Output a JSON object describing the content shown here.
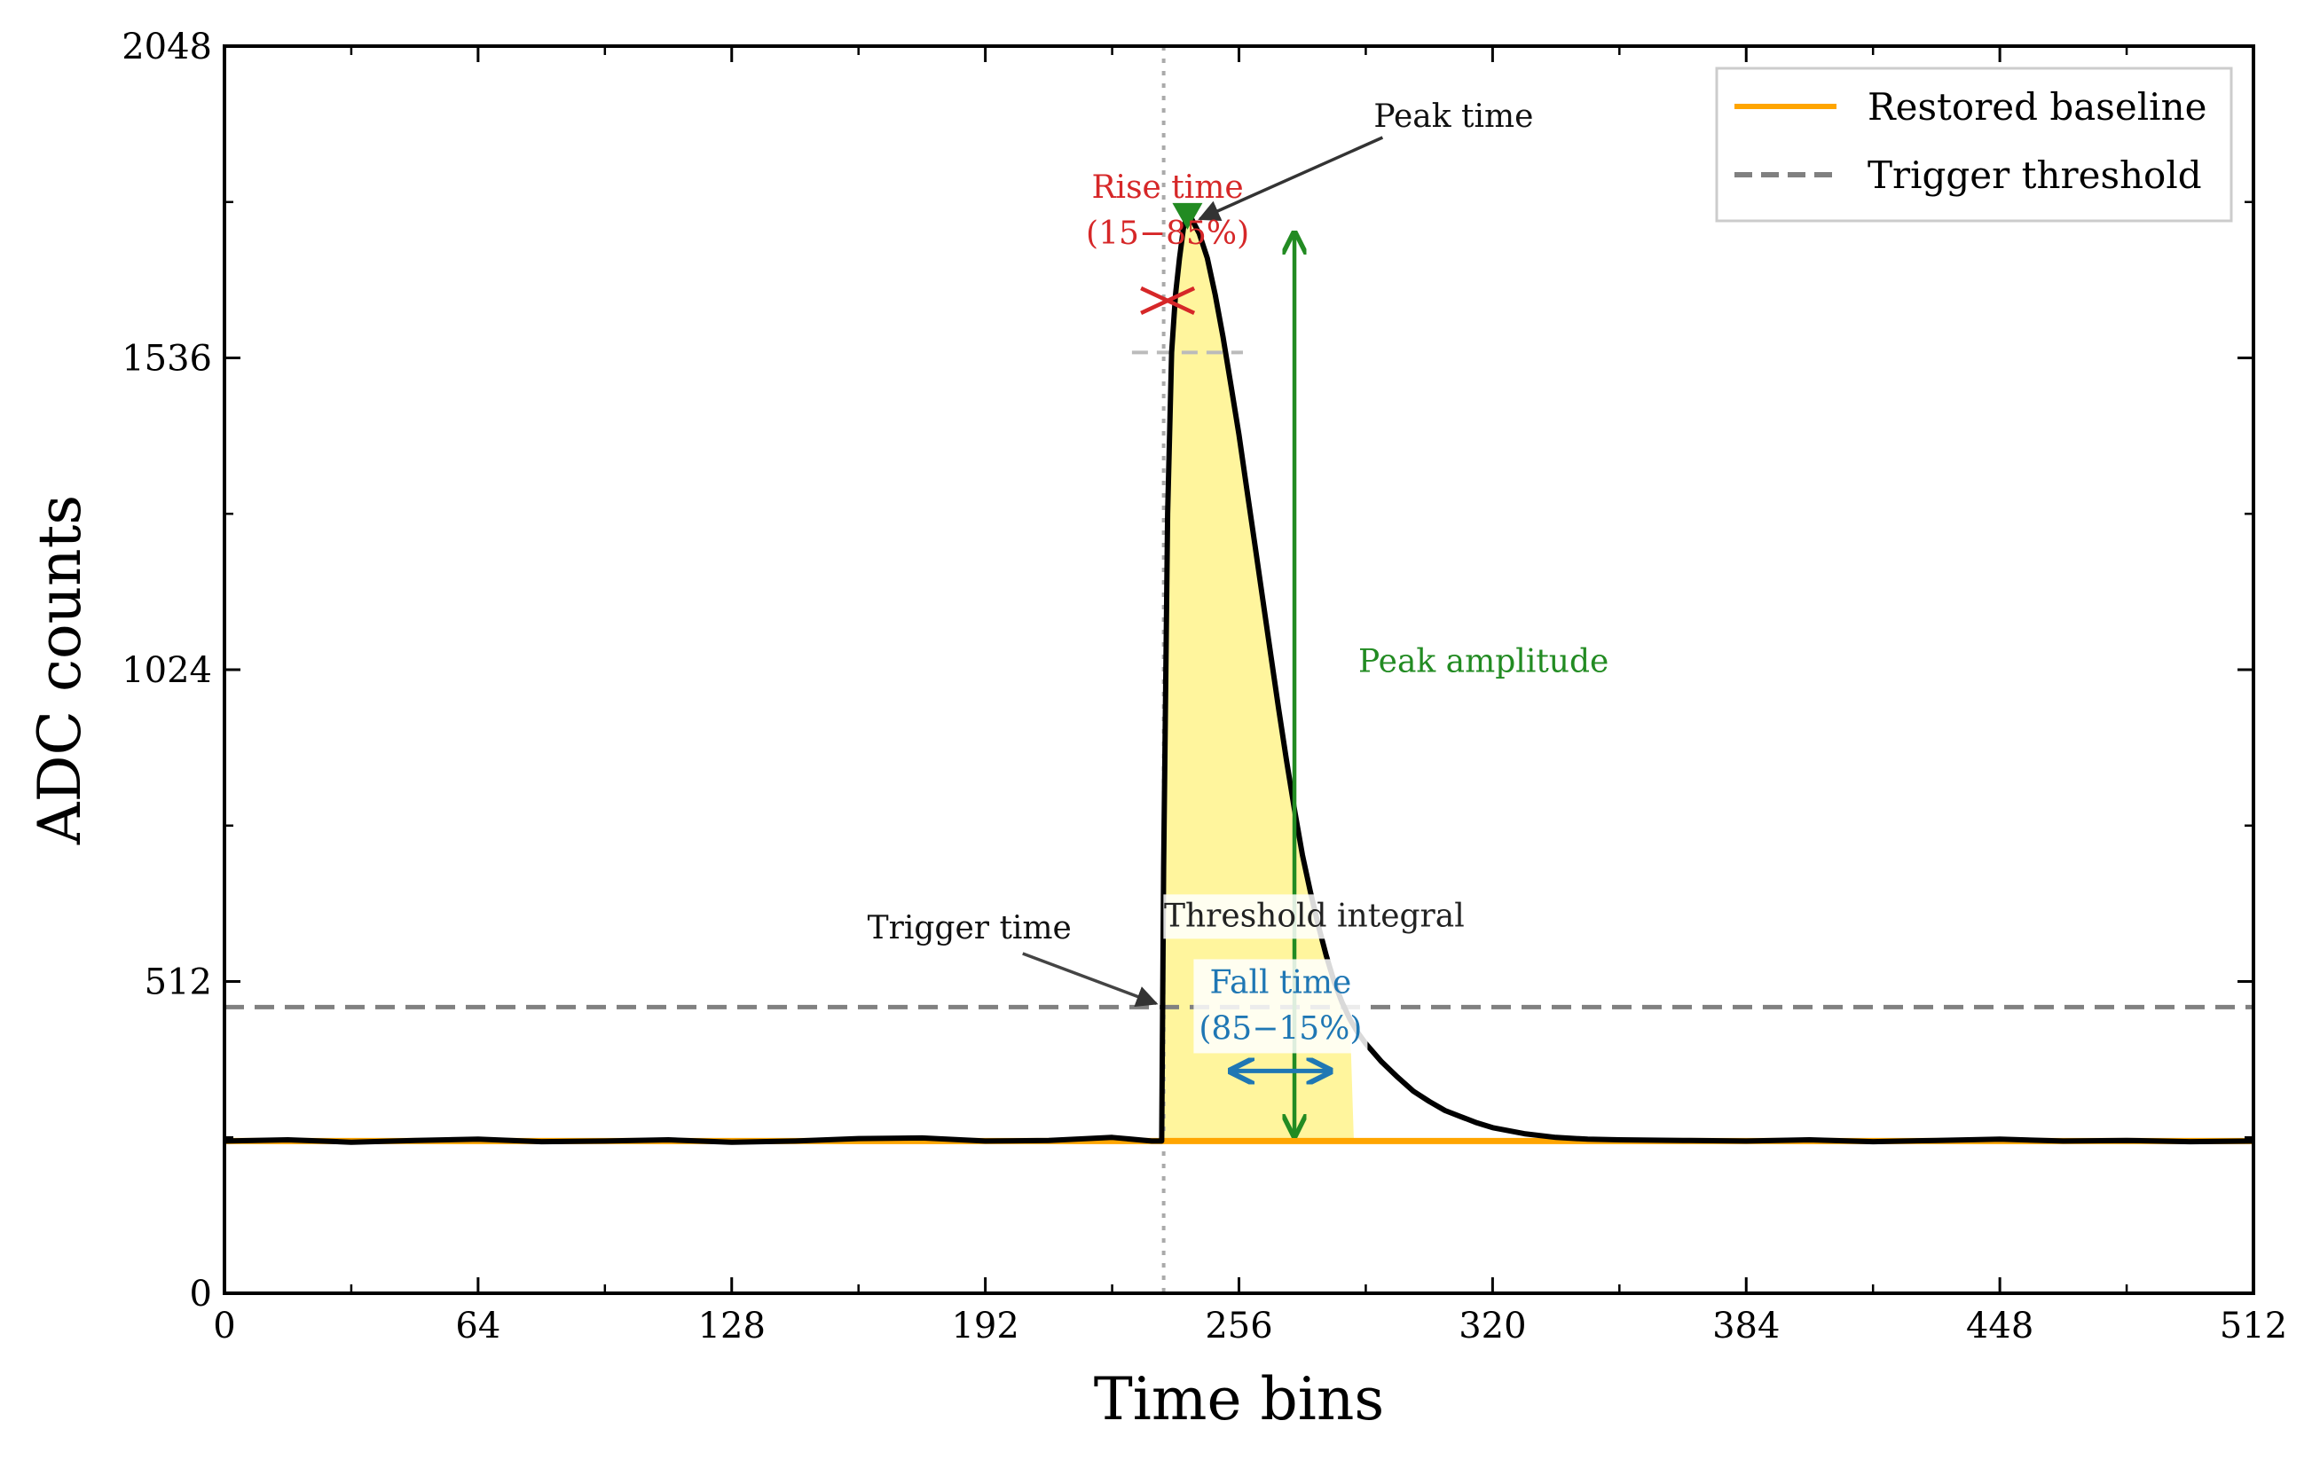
{
  "chart_data": {
    "type": "line",
    "xlabel": "Time bins",
    "ylabel": "ADC counts",
    "xlim": [
      0,
      512
    ],
    "ylim": [
      0,
      2048
    ],
    "x_ticks": [
      0,
      64,
      128,
      192,
      256,
      320,
      384,
      448,
      512
    ],
    "y_ticks": [
      0,
      512,
      1024,
      1536,
      2048
    ],
    "grid": false,
    "legend_position": "top-right",
    "legend": [
      {
        "label": "Restored baseline",
        "color": "#FFA500",
        "style": "solid"
      },
      {
        "label": "Trigger threshold",
        "color": "#808080",
        "style": "dashed"
      }
    ],
    "baseline_value": 250,
    "threshold_value": 470,
    "trigger_time": 237,
    "peak_time": 243,
    "peak_value": 1770,
    "rise_time_level": 1630,
    "upper_reference_level": 1545,
    "waveform": {
      "color": "#000000",
      "x": [
        0,
        16,
        32,
        48,
        64,
        80,
        96,
        112,
        128,
        144,
        160,
        176,
        192,
        208,
        224,
        234,
        236.5,
        237,
        238,
        239,
        240,
        241,
        242,
        243,
        244,
        246,
        248,
        250,
        252,
        254,
        256,
        258,
        260,
        262,
        264,
        266,
        268,
        270,
        272,
        274,
        276,
        278,
        280,
        282,
        284,
        286,
        288,
        292,
        296,
        300,
        304,
        308,
        312,
        316,
        320,
        328,
        336,
        344,
        352,
        368,
        384,
        400,
        416,
        432,
        448,
        464,
        480,
        496,
        512
      ],
      "y": [
        250,
        252,
        248,
        251,
        253,
        249,
        250,
        252,
        248,
        250,
        254,
        255,
        250,
        251,
        256,
        250,
        250,
        700,
        1280,
        1545,
        1640,
        1700,
        1750,
        1770,
        1765,
        1740,
        1700,
        1640,
        1570,
        1490,
        1410,
        1320,
        1230,
        1140,
        1050,
        960,
        875,
        795,
        720,
        660,
        605,
        555,
        512,
        478,
        450,
        428,
        410,
        380,
        355,
        332,
        315,
        300,
        290,
        280,
        272,
        262,
        256,
        253,
        252,
        251,
        250,
        252,
        249,
        251,
        253,
        250,
        251,
        249,
        250
      ]
    },
    "shaded_region": {
      "label": "Threshold integral",
      "color": "#FFF59D",
      "from_x": 237,
      "to_x": 285
    },
    "annotations": [
      {
        "name": "peak-time",
        "text": "Peak time",
        "color": "#333333",
        "target_x": 243,
        "target_y": 1770,
        "text_x": 290,
        "text_y": 1930
      },
      {
        "name": "rise-time",
        "lines": [
          "Rise time",
          "(15−85%)"
        ],
        "color": "#D62728",
        "x": 238,
        "y": 1630
      },
      {
        "name": "peak-amplitude",
        "text": "Peak amplitude",
        "color": "#228B22",
        "x": 270,
        "from_y": 250,
        "to_y": 1750
      },
      {
        "name": "trigger-time",
        "text": "Trigger time",
        "color": "#333333",
        "target_x": 236,
        "target_y": 470,
        "text_x": 188,
        "text_y": 590
      },
      {
        "name": "threshold-integral",
        "text": "Threshold integral",
        "color": "#222222",
        "x": 275,
        "y": 620
      },
      {
        "name": "fall-time",
        "lines": [
          "Fall time",
          "(85−15%)"
        ],
        "color": "#1F77B4",
        "from_x": 253,
        "to_x": 280,
        "y": 365
      }
    ],
    "markers": [
      {
        "name": "peak-marker",
        "shape": "triangle-down",
        "color": "#228B22",
        "x": 243,
        "y": 1770
      },
      {
        "name": "rise-time-marker",
        "shape": "x",
        "color": "#D62728",
        "x": 238,
        "y": 1630
      }
    ]
  }
}
